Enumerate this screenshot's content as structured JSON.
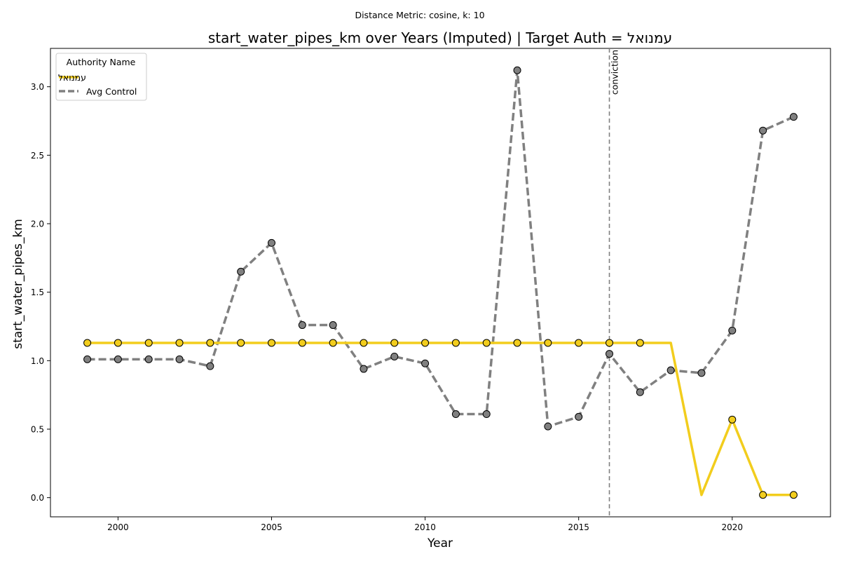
{
  "chart_data": {
    "type": "line",
    "suptitle": "Distance Metric: cosine, k: 10",
    "title": "start_water_pipes_km over Years (Imputed) | Target Auth = עמנואל",
    "xlabel": "Year",
    "ylabel": "start_water_pipes_km",
    "xlim": [
      1997.8,
      2023.2
    ],
    "ylim": [
      -0.14,
      3.28
    ],
    "xticks": [
      2000,
      2005,
      2010,
      2015,
      2020
    ],
    "yticks": [
      0.0,
      0.5,
      1.0,
      1.5,
      2.0,
      2.5,
      3.0
    ],
    "ytick_labels": [
      "0.0",
      "0.5",
      "1.0",
      "1.5",
      "2.0",
      "2.5",
      "3.0"
    ],
    "grid": false,
    "legend": {
      "title": "Authority Name",
      "position": "top-left"
    },
    "series": [
      {
        "name": "עמנואל",
        "color": "#F2CD1D",
        "style": "solid",
        "x": [
          1999,
          2000,
          2001,
          2002,
          2003,
          2004,
          2005,
          2006,
          2007,
          2008,
          2009,
          2010,
          2011,
          2012,
          2013,
          2014,
          2015,
          2016,
          2017,
          2018,
          2019,
          2020,
          2021,
          2022
        ],
        "values": [
          1.13,
          1.13,
          1.13,
          1.13,
          1.13,
          1.13,
          1.13,
          1.13,
          1.13,
          1.13,
          1.13,
          1.13,
          1.13,
          1.13,
          1.13,
          1.13,
          1.13,
          1.13,
          1.13,
          1.13,
          0.02,
          0.57,
          0.02,
          0.02
        ],
        "markers": [
          true,
          true,
          true,
          true,
          true,
          true,
          true,
          true,
          true,
          true,
          true,
          true,
          true,
          true,
          true,
          true,
          true,
          true,
          true,
          false,
          false,
          true,
          true,
          true
        ]
      },
      {
        "name": "Avg Control",
        "color": "#808080",
        "style": "dashed",
        "x": [
          1999,
          2000,
          2001,
          2002,
          2003,
          2004,
          2005,
          2006,
          2007,
          2008,
          2009,
          2010,
          2011,
          2012,
          2013,
          2014,
          2015,
          2016,
          2017,
          2018,
          2019,
          2020,
          2021,
          2022
        ],
        "values": [
          1.01,
          1.01,
          1.01,
          1.01,
          0.96,
          1.65,
          1.86,
          1.26,
          1.26,
          0.94,
          1.03,
          0.98,
          0.61,
          0.61,
          3.12,
          0.52,
          0.59,
          1.05,
          0.77,
          0.93,
          0.91,
          1.22,
          2.68,
          2.78
        ],
        "markers": [
          true,
          true,
          true,
          true,
          true,
          true,
          true,
          true,
          true,
          true,
          true,
          true,
          true,
          true,
          true,
          true,
          true,
          true,
          true,
          true,
          true,
          true,
          true,
          true
        ]
      }
    ],
    "annotations": [
      {
        "type": "vline",
        "x": 2016,
        "label": "conviction",
        "color": "#808080"
      }
    ]
  }
}
